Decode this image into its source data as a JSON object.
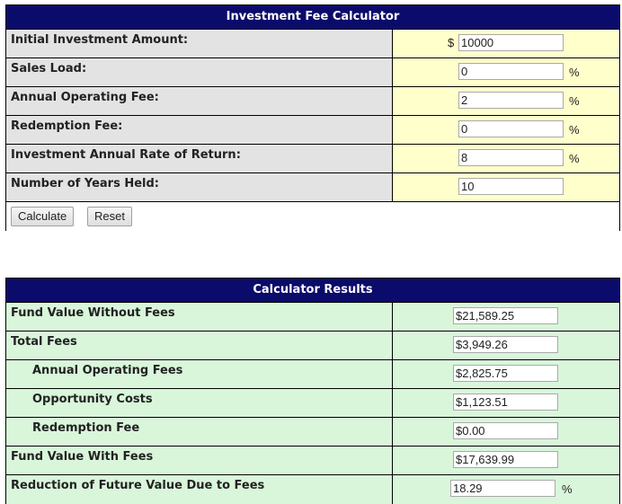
{
  "calculator": {
    "title": "Investment Fee Calculator",
    "currency_symbol": "$",
    "percent_symbol": "%",
    "rows": [
      {
        "label": "Initial Investment Amount:",
        "value": "10000"
      },
      {
        "label": "Sales Load:",
        "value": "0"
      },
      {
        "label": "Annual Operating Fee:",
        "value": "2"
      },
      {
        "label": "Redemption Fee:",
        "value": "0"
      },
      {
        "label": "Investment Annual Rate of Return:",
        "value": "8"
      },
      {
        "label": "Number of Years Held:",
        "value": "10"
      }
    ],
    "calculate_label": "Calculate",
    "reset_label": "Reset"
  },
  "results": {
    "title": "Calculator Results",
    "percent_symbol": "%",
    "rows": [
      {
        "label": "Fund Value Without Fees",
        "value": "$21,589.25"
      },
      {
        "label": "Total Fees",
        "value": "$3,949.26"
      },
      {
        "label": "Annual Operating Fees",
        "value": "$2,825.75"
      },
      {
        "label": "Opportunity Costs",
        "value": "$1,123.51"
      },
      {
        "label": "Redemption Fee",
        "value": "$0.00"
      },
      {
        "label": "Fund Value With Fees",
        "value": "$17,639.99"
      },
      {
        "label": "Reduction of Future Value Due to Fees",
        "value": "18.29"
      }
    ]
  },
  "colors": {
    "header_bg": "#0b0b6b",
    "label_bg": "#e3e3e3",
    "input_cell_bg": "#ffffcc",
    "results_bg": "#d9f6db"
  }
}
